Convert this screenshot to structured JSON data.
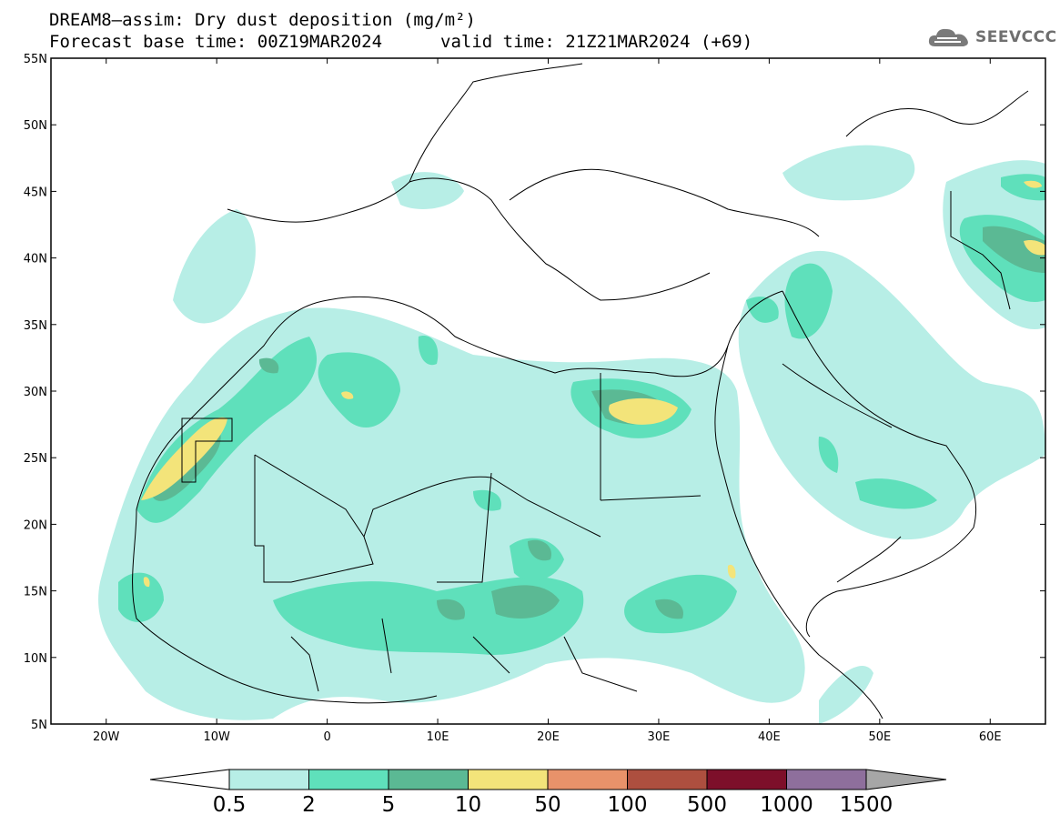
{
  "header": {
    "title_line1": "DREAM8–assim: Dry dust deposition (mg/m²)",
    "base_time": "Forecast base time: 00Z19MAR2024",
    "valid_time": "valid time: 21Z21MAR2024 (+69)",
    "logo_text": "SEEVCCC"
  },
  "map": {
    "lat_labels": [
      "55N",
      "50N",
      "45N",
      "40N",
      "35N",
      "30N",
      "25N",
      "20N",
      "15N",
      "10N",
      "5N"
    ],
    "lon_labels": [
      "20W",
      "10W",
      "0",
      "10E",
      "20E",
      "30E",
      "40E",
      "50E",
      "60E"
    ],
    "lat_values": [
      55,
      50,
      45,
      40,
      35,
      30,
      25,
      20,
      15,
      10,
      5
    ],
    "lon_values": [
      -20,
      -10,
      0,
      10,
      20,
      30,
      40,
      50,
      60
    ],
    "extent": {
      "lon_min": -25,
      "lon_max": 65,
      "lat_min": 5,
      "lat_max": 55
    }
  },
  "colorbar": {
    "levels": [
      "0.5",
      "2",
      "5",
      "10",
      "50",
      "100",
      "500",
      "1000",
      "1500"
    ],
    "colors": [
      "#b7eee6",
      "#5fe0bb",
      "#5bb994",
      "#f3e47a",
      "#e8926a",
      "#ad4f3f",
      "#7d0f2a",
      "#8e6f9c",
      "#a6a6a6"
    ]
  }
}
